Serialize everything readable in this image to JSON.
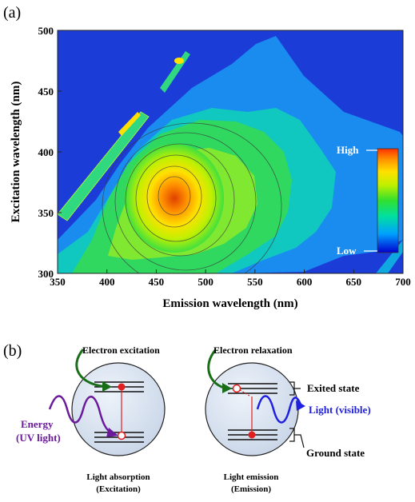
{
  "panel_a": {
    "label": "(a)",
    "chart_data": {
      "type": "heatmap",
      "title": "",
      "xlabel": "Emission wavelength (nm)",
      "ylabel": "Excitation wavelength (nm)",
      "xlim": [
        350,
        700
      ],
      "ylim": [
        300,
        500
      ],
      "x_ticks": [
        350,
        400,
        450,
        500,
        550,
        600,
        650,
        700
      ],
      "y_ticks": [
        300,
        350,
        400,
        450,
        500
      ],
      "peak": {
        "emission": 462,
        "excitation": 365
      },
      "scatter_bands": [
        {
          "from": [
            350,
            350
          ],
          "to": [
            420,
            440
          ],
          "peak": [
            408,
            430
          ]
        },
        {
          "from": [
            430,
            455
          ],
          "to": [
            490,
            500
          ],
          "peak": [
            470,
            475
          ]
        }
      ],
      "colorbar": {
        "high_label": "High",
        "low_label": "Low",
        "colors": [
          "#0000d0",
          "#00a0ff",
          "#00e0a0",
          "#30e030",
          "#c0f000",
          "#ffe000",
          "#ff9000",
          "#ff3000"
        ]
      },
      "grid": false
    }
  },
  "panel_b": {
    "label": "(b)",
    "left": {
      "pointer_label": "Electron excitation",
      "energy_label_line1": "Energy",
      "energy_label_line2": "(UV light)",
      "caption_line1": "Light absorption",
      "caption_line2": "(Excitation)"
    },
    "right": {
      "pointer_label": "Electron relaxation",
      "excited_label": "Exited state",
      "light_label": "Light (visible)",
      "ground_label": "Ground state",
      "caption_line1": "Light emission",
      "caption_line2": "(Emission)"
    },
    "colors": {
      "green_arrow": "#1a6e1a",
      "uv_wave": "#6a1a9a",
      "visible_wave": "#2020e0",
      "transition": "#e02020",
      "circle_fill": "#dde6f2"
    }
  }
}
